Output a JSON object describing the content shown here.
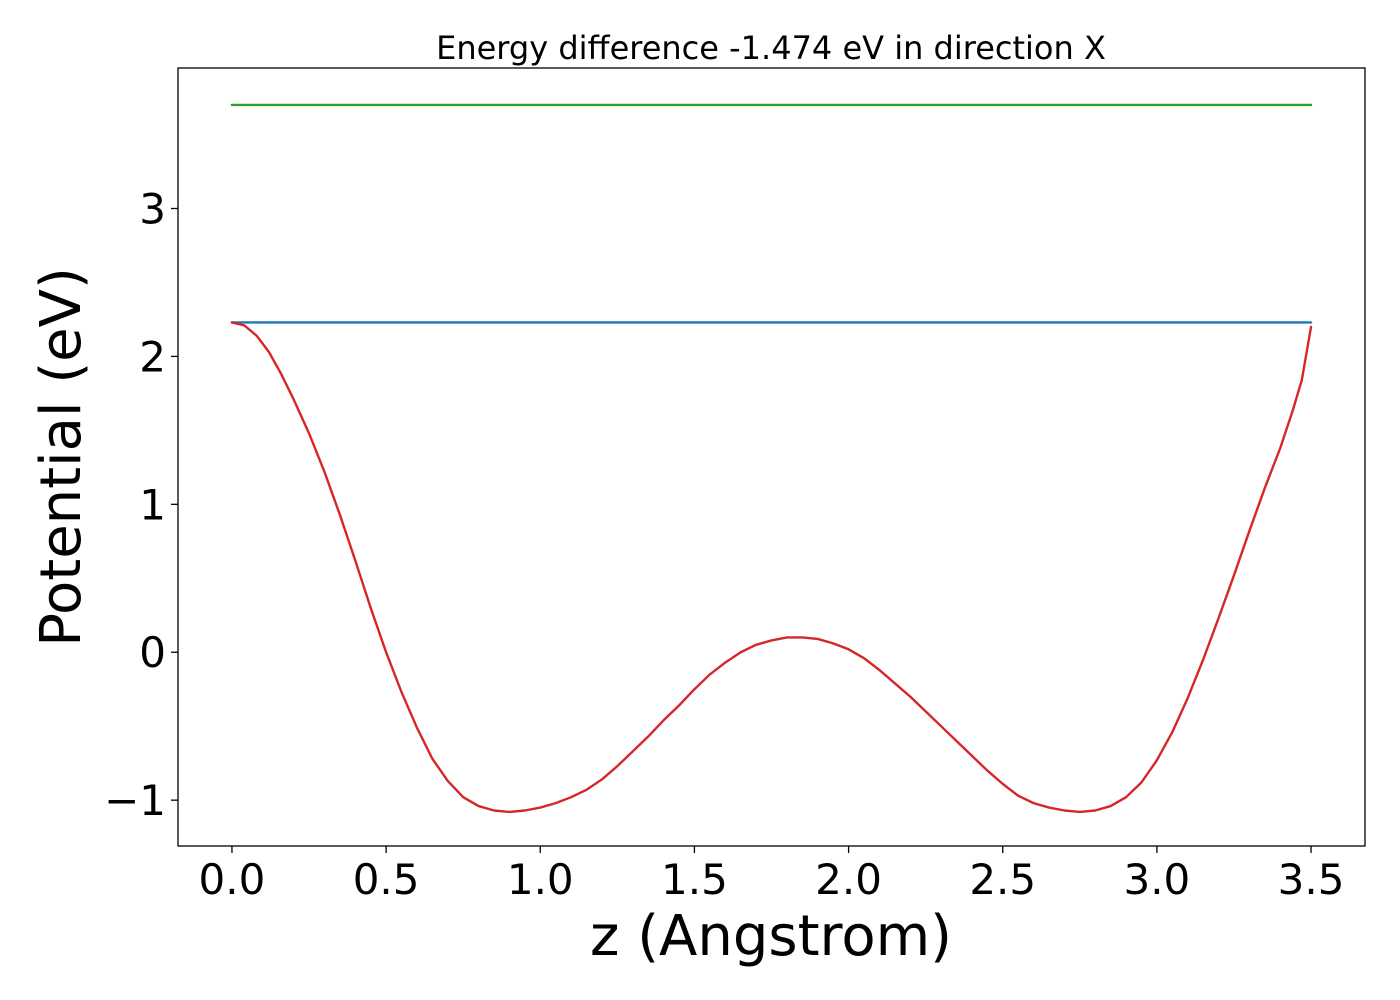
{
  "chart_data": {
    "type": "line",
    "title": "Energy difference -1.474 eV in direction X",
    "xlabel": "z (Angstrom)",
    "ylabel": "Potential (eV)",
    "xlim": [
      -0.175,
      3.675
    ],
    "ylim": [
      -1.31,
      3.95
    ],
    "x_ticks": [
      0.0,
      0.5,
      1.0,
      1.5,
      2.0,
      2.5,
      3.0,
      3.5
    ],
    "x_tick_labels": [
      "0.0",
      "0.5",
      "1.0",
      "1.5",
      "2.0",
      "2.5",
      "3.0",
      "3.5"
    ],
    "y_ticks": [
      -1,
      0,
      1,
      2,
      3
    ],
    "y_tick_labels": [
      "−1",
      "0",
      "1",
      "2",
      "3"
    ],
    "grid": false,
    "series": [
      {
        "color": "#2ca02c",
        "x": [
          0.0,
          3.5
        ],
        "y": [
          3.7,
          3.7
        ]
      },
      {
        "color": "#1f77b4",
        "x": [
          0.0,
          3.5
        ],
        "y": [
          2.23,
          2.23
        ]
      },
      {
        "color": "#d62728",
        "x": [
          0.0,
          0.04,
          0.08,
          0.12,
          0.16,
          0.2,
          0.25,
          0.3,
          0.35,
          0.4,
          0.45,
          0.5,
          0.55,
          0.6,
          0.65,
          0.7,
          0.75,
          0.8,
          0.85,
          0.9,
          0.95,
          1.0,
          1.05,
          1.1,
          1.15,
          1.2,
          1.25,
          1.3,
          1.35,
          1.4,
          1.45,
          1.5,
          1.55,
          1.6,
          1.65,
          1.7,
          1.75,
          1.8,
          1.85,
          1.9,
          1.95,
          2.0,
          2.05,
          2.1,
          2.15,
          2.2,
          2.25,
          2.3,
          2.35,
          2.4,
          2.45,
          2.5,
          2.55,
          2.6,
          2.65,
          2.7,
          2.75,
          2.8,
          2.85,
          2.9,
          2.95,
          3.0,
          3.05,
          3.1,
          3.15,
          3.2,
          3.25,
          3.3,
          3.35,
          3.4,
          3.44,
          3.47,
          3.5
        ],
        "y": [
          2.23,
          2.21,
          2.14,
          2.03,
          1.88,
          1.71,
          1.48,
          1.22,
          0.93,
          0.62,
          0.3,
          0.0,
          -0.27,
          -0.51,
          -0.72,
          -0.87,
          -0.98,
          -1.04,
          -1.07,
          -1.08,
          -1.07,
          -1.05,
          -1.02,
          -0.98,
          -0.93,
          -0.86,
          -0.77,
          -0.67,
          -0.57,
          -0.46,
          -0.36,
          -0.25,
          -0.15,
          -0.07,
          0.0,
          0.05,
          0.08,
          0.1,
          0.1,
          0.09,
          0.06,
          0.02,
          -0.04,
          -0.12,
          -0.21,
          -0.3,
          -0.4,
          -0.5,
          -0.6,
          -0.7,
          -0.8,
          -0.89,
          -0.97,
          -1.02,
          -1.05,
          -1.07,
          -1.08,
          -1.07,
          -1.04,
          -0.98,
          -0.88,
          -0.73,
          -0.54,
          -0.31,
          -0.05,
          0.23,
          0.52,
          0.82,
          1.11,
          1.38,
          1.63,
          1.84,
          2.2
        ]
      }
    ]
  }
}
